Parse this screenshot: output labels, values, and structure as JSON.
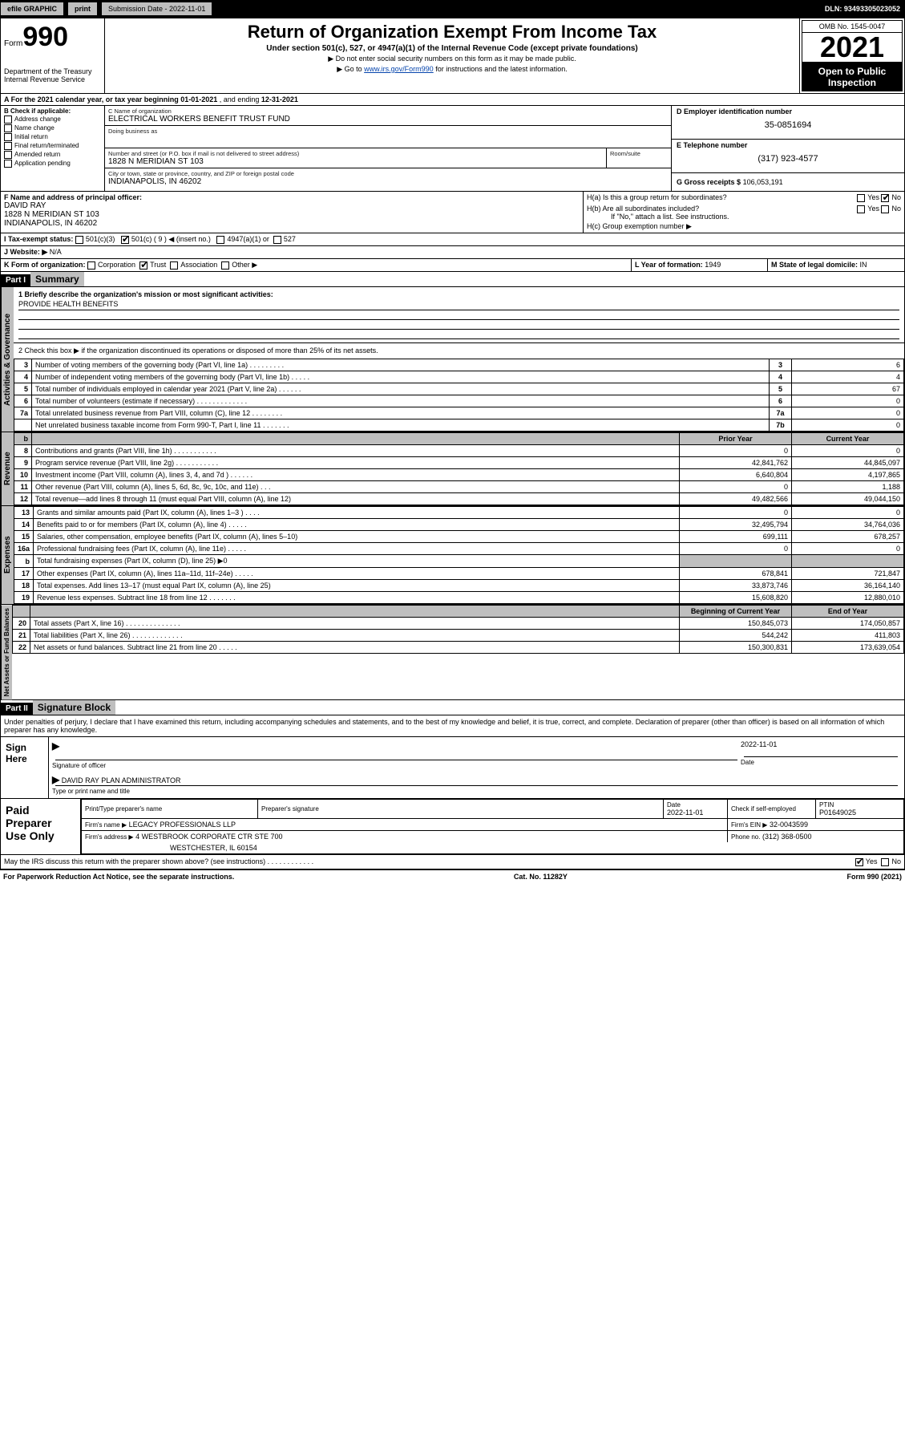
{
  "topbar": {
    "efile": "efile GRAPHIC",
    "print": "print",
    "subdate_label": "Submission Date - 2022-11-01",
    "dln": "DLN: 93493305023052"
  },
  "header": {
    "form_label": "Form",
    "form_no": "990",
    "dept": "Department of the Treasury",
    "irs": "Internal Revenue Service",
    "title": "Return of Organization Exempt From Income Tax",
    "sub": "Under section 501(c), 527, or 4947(a)(1) of the Internal Revenue Code (except private foundations)",
    "note1": "▶ Do not enter social security numbers on this form as it may be made public.",
    "note2_pre": "▶ Go to ",
    "note2_link": "www.irs.gov/Form990",
    "note2_post": " for instructions and the latest information.",
    "omb": "OMB No. 1545-0047",
    "year": "2021",
    "open": "Open to Public Inspection"
  },
  "periodA": {
    "text_pre": "A For the 2021 calendar year, or tax year beginning ",
    "begin": "01-01-2021",
    "mid": " , and ending ",
    "end": "12-31-2021"
  },
  "boxB": {
    "label": "B Check if applicable:",
    "opts": [
      "Address change",
      "Name change",
      "Initial return",
      "Final return/terminated",
      "Amended return",
      "Application pending"
    ]
  },
  "boxC": {
    "name_label": "C Name of organization",
    "name": "ELECTRICAL WORKERS BENEFIT TRUST FUND",
    "dba_label": "Doing business as",
    "dba": "",
    "street_label": "Number and street (or P.O. box if mail is not delivered to street address)",
    "room_label": "Room/suite",
    "street": "1828 N MERIDIAN ST 103",
    "city_label": "City or town, state or province, country, and ZIP or foreign postal code",
    "city": "INDIANAPOLIS, IN  46202"
  },
  "boxD": {
    "label": "D Employer identification number",
    "ein": "35-0851694"
  },
  "boxE": {
    "label": "E Telephone number",
    "phone": "(317) 923-4577"
  },
  "boxG": {
    "label": "G Gross receipts $",
    "amount": "106,053,191"
  },
  "boxF": {
    "label": "F Name and address of principal officer:",
    "name": "DAVID RAY",
    "addr1": "1828 N MERIDIAN ST 103",
    "addr2": "INDIANAPOLIS, IN  46202"
  },
  "boxH": {
    "a": "H(a)  Is this a group return for subordinates?",
    "b": "H(b)  Are all subordinates included?",
    "b_note": "If \"No,\" attach a list. See instructions.",
    "c": "H(c)  Group exemption number ▶",
    "yes": "Yes",
    "no": "No"
  },
  "boxI": {
    "label": "I   Tax-exempt status:",
    "o1": "501(c)(3)",
    "o2": "501(c) ( 9 ) ◀ (insert no.)",
    "o3": "4947(a)(1) or",
    "o4": "527"
  },
  "boxJ": {
    "label": "J   Website: ▶",
    "val": "N/A"
  },
  "boxK": {
    "label": "K Form of organization:",
    "o1": "Corporation",
    "o2": "Trust",
    "o3": "Association",
    "o4": "Other ▶"
  },
  "boxL": {
    "label": "L Year of formation:",
    "val": "1949"
  },
  "boxM": {
    "label": "M State of legal domicile:",
    "val": "IN"
  },
  "part1": {
    "hdr": "Part I",
    "title": "Summary",
    "q1": "1  Briefly describe the organization's mission or most significant activities:",
    "q1_ans": "PROVIDE HEALTH BENEFITS",
    "q2": "2  Check this box ▶        if the organization discontinued its operations or disposed of more than 25% of its net assets.",
    "tabs": {
      "act": "Activities & Governance",
      "rev": "Revenue",
      "exp": "Expenses",
      "net": "Net Assets or Fund Balances"
    },
    "cols": {
      "prior": "Prior Year",
      "curr": "Current Year",
      "begin": "Beginning of Current Year",
      "end": "End of Year"
    },
    "lines_gov": [
      {
        "n": "3",
        "t": "Number of voting members of the governing body (Part VI, line 1a)   .   .   .   .   .   .   .   .   .",
        "box": "3",
        "v": "6"
      },
      {
        "n": "4",
        "t": "Number of independent voting members of the governing body (Part VI, line 1b)   .   .   .   .   .",
        "box": "4",
        "v": "4"
      },
      {
        "n": "5",
        "t": "Total number of individuals employed in calendar year 2021 (Part V, line 2a)   .   .   .   .   .   .",
        "box": "5",
        "v": "67"
      },
      {
        "n": "6",
        "t": "Total number of volunteers (estimate if necessary)   .   .   .   .   .   .   .   .   .   .   .   .   .",
        "box": "6",
        "v": "0"
      },
      {
        "n": "7a",
        "t": "Total unrelated business revenue from Part VIII, column (C), line 12   .   .   .   .   .   .   .   .",
        "box": "7a",
        "v": "0"
      },
      {
        "n": "",
        "t": "Net unrelated business taxable income from Form 990-T, Part I, line 11   .   .   .   .   .   .   .",
        "box": "7b",
        "v": "0"
      }
    ],
    "lines_rev": [
      {
        "n": "8",
        "t": "Contributions and grants (Part VIII, line 1h)   .   .   .   .   .   .   .   .   .   .   .",
        "p": "0",
        "c": "0"
      },
      {
        "n": "9",
        "t": "Program service revenue (Part VIII, line 2g)   .   .   .   .   .   .   .   .   .   .   .",
        "p": "42,841,762",
        "c": "44,845,097"
      },
      {
        "n": "10",
        "t": "Investment income (Part VIII, column (A), lines 3, 4, and 7d )   .   .   .   .   .   .",
        "p": "6,640,804",
        "c": "4,197,865"
      },
      {
        "n": "11",
        "t": "Other revenue (Part VIII, column (A), lines 5, 6d, 8c, 9c, 10c, and 11e)   .   .   .",
        "p": "0",
        "c": "1,188"
      },
      {
        "n": "12",
        "t": "Total revenue—add lines 8 through 11 (must equal Part VIII, column (A), line 12)",
        "p": "49,482,566",
        "c": "49,044,150"
      }
    ],
    "lines_exp": [
      {
        "n": "13",
        "t": "Grants and similar amounts paid (Part IX, column (A), lines 1–3 )   .   .   .   .",
        "p": "0",
        "c": "0"
      },
      {
        "n": "14",
        "t": "Benefits paid to or for members (Part IX, column (A), line 4)   .   .   .   .   .",
        "p": "32,495,794",
        "c": "34,764,036"
      },
      {
        "n": "15",
        "t": "Salaries, other compensation, employee benefits (Part IX, column (A), lines 5–10)",
        "p": "699,111",
        "c": "678,257"
      },
      {
        "n": "16a",
        "t": "Professional fundraising fees (Part IX, column (A), line 11e)   .   .   .   .   .",
        "p": "0",
        "c": "0"
      },
      {
        "n": "b",
        "t": "Total fundraising expenses (Part IX, column (D), line 25) ▶0",
        "p": "",
        "c": ""
      },
      {
        "n": "17",
        "t": "Other expenses (Part IX, column (A), lines 11a–11d, 11f–24e)   .   .   .   .   .",
        "p": "678,841",
        "c": "721,847"
      },
      {
        "n": "18",
        "t": "Total expenses. Add lines 13–17 (must equal Part IX, column (A), line 25)",
        "p": "33,873,746",
        "c": "36,164,140"
      },
      {
        "n": "19",
        "t": "Revenue less expenses. Subtract line 18 from line 12   .   .   .   .   .   .   .",
        "p": "15,608,820",
        "c": "12,880,010"
      }
    ],
    "lines_net": [
      {
        "n": "20",
        "t": "Total assets (Part X, line 16)   .   .   .   .   .   .   .   .   .   .   .   .   .   .",
        "p": "150,845,073",
        "c": "174,050,857"
      },
      {
        "n": "21",
        "t": "Total liabilities (Part X, line 26)   .   .   .   .   .   .   .   .   .   .   .   .   .",
        "p": "544,242",
        "c": "411,803"
      },
      {
        "n": "22",
        "t": "Net assets or fund balances. Subtract line 21 from line 20   .   .   .   .   .",
        "p": "150,300,831",
        "c": "173,639,054"
      }
    ]
  },
  "part2": {
    "hdr": "Part II",
    "title": "Signature Block",
    "decl": "Under penalties of perjury, I declare that I have examined this return, including accompanying schedules and statements, and to the best of my knowledge and belief, it is true, correct, and complete. Declaration of preparer (other than officer) is based on all information of which preparer has any knowledge."
  },
  "sign": {
    "here": "Sign Here",
    "sig_label": "Signature of officer",
    "date_label": "Date",
    "date": "2022-11-01",
    "name": "DAVID RAY  PLAN ADMINISTRATOR",
    "name_label": "Type or print name and title"
  },
  "paid": {
    "left": "Paid Preparer Use Only",
    "pt_label": "Print/Type preparer's name",
    "ps_label": "Preparer's signature",
    "date_label": "Date",
    "date": "2022-11-01",
    "check_label": "Check        if self-employed",
    "ptin_label": "PTIN",
    "ptin": "P01649025",
    "firm_name_label": "Firm's name     ▶",
    "firm_name": "LEGACY PROFESSIONALS LLP",
    "firm_ein_label": "Firm's EIN ▶",
    "firm_ein": "32-0043599",
    "firm_addr_label": "Firm's address ▶",
    "firm_addr1": "4 WESTBROOK CORPORATE CTR STE 700",
    "firm_addr2": "WESTCHESTER, IL  60154",
    "phone_label": "Phone no.",
    "phone": "(312) 368-0500"
  },
  "discuss": {
    "q": "May the IRS discuss this return with the preparer shown above? (see instructions)   .   .   .   .   .   .   .   .   .   .   .   .",
    "yes": "Yes",
    "no": "No"
  },
  "footer": {
    "left": "For Paperwork Reduction Act Notice, see the separate instructions.",
    "mid": "Cat. No. 11282Y",
    "right": "Form 990 (2021)"
  }
}
